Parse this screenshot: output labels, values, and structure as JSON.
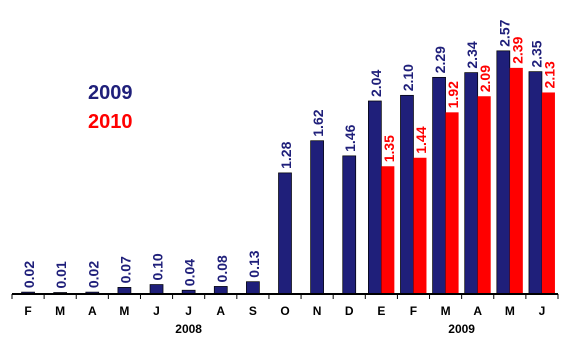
{
  "colors": {
    "series_2009": "#1f1f7a",
    "series_2010": "#ff0000",
    "axis": "#000000"
  },
  "legend": {
    "placement": "upper-left",
    "items": [
      "2009",
      "2010"
    ]
  },
  "chart_data": {
    "type": "bar",
    "grid": false,
    "ylim": [
      0,
      2.6
    ],
    "categories": [
      "F",
      "M",
      "A",
      "M",
      "J",
      "J",
      "A",
      "S",
      "O",
      "N",
      "D",
      "E",
      "F",
      "M",
      "A",
      "M",
      "J"
    ],
    "year_labels": [
      {
        "label": "2008",
        "span": [
          0,
          10
        ]
      },
      {
        "label": "2009",
        "span": [
          11,
          16
        ]
      }
    ],
    "series": [
      {
        "name": "2009",
        "values": [
          0.02,
          0.01,
          0.02,
          0.07,
          0.1,
          0.04,
          0.08,
          0.13,
          1.28,
          1.62,
          1.46,
          2.04,
          2.1,
          2.29,
          2.34,
          2.57,
          2.35
        ],
        "labels": [
          "0.02",
          "0.01",
          "0.02",
          "0.07",
          "0.10",
          "0.04",
          "0.08",
          "0.13",
          "1.28",
          "1.62",
          "1.46",
          "2.04",
          "2.10",
          "2.29",
          "2.34",
          "2.57",
          "2.35"
        ]
      },
      {
        "name": "2010",
        "values": [
          null,
          null,
          null,
          null,
          null,
          null,
          null,
          null,
          null,
          null,
          null,
          1.35,
          1.44,
          1.92,
          2.09,
          2.39,
          2.13
        ],
        "labels": [
          null,
          null,
          null,
          null,
          null,
          null,
          null,
          null,
          null,
          null,
          null,
          "1.35",
          "1.44",
          "1.92",
          "2.09",
          "2.39",
          "2.13"
        ]
      }
    ]
  }
}
